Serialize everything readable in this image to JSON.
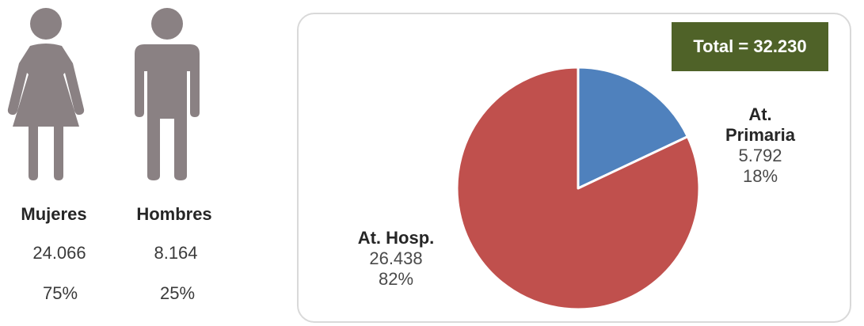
{
  "people": [
    {
      "label": "Mujeres",
      "value": "24.066",
      "percent": "75%",
      "icon": "woman-icon"
    },
    {
      "label": "Hombres",
      "value": "8.164",
      "percent": "25%",
      "icon": "man-icon"
    }
  ],
  "colors": {
    "figure": "#8a8183",
    "primaria": "#4f81bd",
    "hosp": "#c0504d",
    "total_bg": "#4f6228"
  },
  "total_label": "Total  = 32.230",
  "chart_data": {
    "type": "pie",
    "title": "",
    "slices": [
      {
        "name_line1": "At.",
        "name_line2": "Primaria",
        "value": 5792,
        "value_label": "5.792",
        "percent": "18%",
        "color": "#4f81bd"
      },
      {
        "name_line1": "At. Hosp.",
        "name_line2": "",
        "value": 26438,
        "value_label": "26.438",
        "percent": "82%",
        "color": "#c0504d"
      }
    ]
  }
}
